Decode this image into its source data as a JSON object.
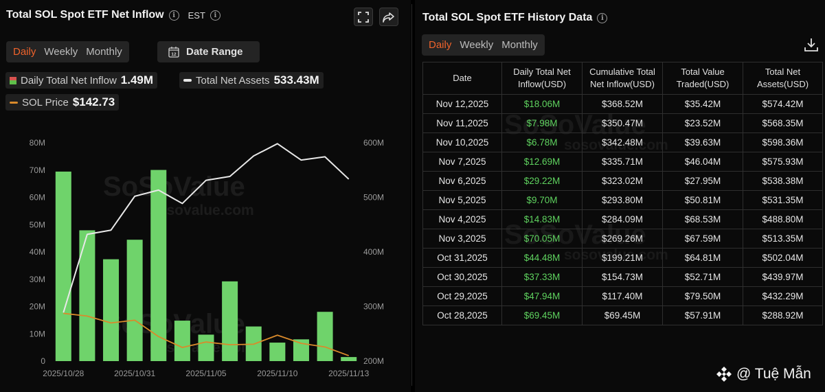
{
  "left": {
    "title": "Total SOL Spot ETF Net Inflow",
    "timezone": "EST",
    "period_tabs": [
      "Daily",
      "Weekly",
      "Monthly"
    ],
    "date_range_label": "Date Range",
    "date_icon_text": "12",
    "legend": {
      "inflow_label": "Daily Total Net Inflow",
      "inflow_value": "1.49M",
      "assets_label": "Total Net Assets",
      "assets_value": "533.43M",
      "price_label": "SOL Price",
      "price_value": "$142.73"
    },
    "watermark_brand": "SoSoValue",
    "watermark_url": "sosovalue.com"
  },
  "chart_data": {
    "type": "bar",
    "title": "Total SOL Spot ETF Net Inflow",
    "categories": [
      "2025/10/28",
      "2025/10/29",
      "2025/10/30",
      "2025/10/31",
      "2025/11/03",
      "2025/11/04",
      "2025/11/05",
      "2025/11/06",
      "2025/11/07",
      "2025/11/10",
      "2025/11/11",
      "2025/11/12",
      "2025/11/13"
    ],
    "x_tick_labels": [
      "2025/10/28",
      "2025/10/31",
      "2025/11/05",
      "2025/11/10",
      "2025/11/13"
    ],
    "x_tick_indices": [
      0,
      3,
      6,
      9,
      12
    ],
    "series": [
      {
        "name": "Daily Total Net Inflow",
        "type": "bar",
        "axis": "left",
        "color": "#6fd36b",
        "values": [
          69.45,
          47.94,
          37.33,
          44.48,
          70.05,
          14.83,
          9.7,
          29.22,
          12.69,
          6.78,
          7.98,
          18.06,
          1.49
        ]
      },
      {
        "name": "Total Net Assets",
        "type": "line",
        "axis": "right",
        "color": "#e8e8e8",
        "values": [
          288.92,
          432.29,
          439.97,
          502.04,
          513.35,
          488.8,
          531.35,
          538.38,
          575.93,
          598.36,
          568.35,
          574.42,
          533.43
        ]
      },
      {
        "name": "SOL Price",
        "type": "line",
        "axis": "left",
        "color": "#d98a2b",
        "values": [
          17.5,
          16.5,
          14.0,
          15.0,
          9.0,
          5.0,
          7.0,
          6.0,
          6.2,
          9.5,
          6.5,
          5.2,
          2.0
        ]
      }
    ],
    "y_left": {
      "ticks": [
        "80M",
        "70M",
        "60M",
        "50M",
        "40M",
        "30M",
        "20M",
        "10M",
        "0"
      ],
      "range": [
        0,
        80
      ]
    },
    "y_right": {
      "ticks": [
        "600M",
        "500M",
        "400M",
        "300M",
        "200M"
      ],
      "range": [
        200,
        600
      ]
    }
  },
  "right": {
    "title": "Total SOL Spot ETF History Data",
    "period_tabs": [
      "Daily",
      "Weekly",
      "Monthly"
    ],
    "columns": [
      [
        "Date"
      ],
      [
        "Daily Total Net",
        "Inflow(USD)"
      ],
      [
        "Cumulative Total",
        "Net Inflow(USD)"
      ],
      [
        "Total Value",
        "Traded(USD)"
      ],
      [
        "Total Net",
        "Assets(USD)"
      ]
    ],
    "rows": [
      [
        "Nov 12,2025",
        "$18.06M",
        "$368.52M",
        "$35.42M",
        "$574.42M"
      ],
      [
        "Nov 11,2025",
        "$7.98M",
        "$350.47M",
        "$23.52M",
        "$568.35M"
      ],
      [
        "Nov 10,2025",
        "$6.78M",
        "$342.48M",
        "$39.63M",
        "$598.36M"
      ],
      [
        "Nov 7,2025",
        "$12.69M",
        "$335.71M",
        "$46.04M",
        "$575.93M"
      ],
      [
        "Nov 6,2025",
        "$29.22M",
        "$323.02M",
        "$27.95M",
        "$538.38M"
      ],
      [
        "Nov 5,2025",
        "$9.70M",
        "$293.80M",
        "$50.81M",
        "$531.35M"
      ],
      [
        "Nov 4,2025",
        "$14.83M",
        "$284.09M",
        "$68.53M",
        "$488.80M"
      ],
      [
        "Nov 3,2025",
        "$70.05M",
        "$269.26M",
        "$67.59M",
        "$513.35M"
      ],
      [
        "Oct 31,2025",
        "$44.48M",
        "$199.21M",
        "$64.81M",
        "$502.04M"
      ],
      [
        "Oct 30,2025",
        "$37.33M",
        "$154.73M",
        "$52.71M",
        "$439.97M"
      ],
      [
        "Oct 29,2025",
        "$47.94M",
        "$117.40M",
        "$79.50M",
        "$432.29M"
      ],
      [
        "Oct 28,2025",
        "$69.45M",
        "$69.45M",
        "$57.91M",
        "$288.92M"
      ]
    ]
  },
  "credit": "@ Tuệ Mẫn",
  "colors": {
    "accent": "#f0632b",
    "positive": "#5fd35f",
    "bar": "#6fd36b"
  }
}
